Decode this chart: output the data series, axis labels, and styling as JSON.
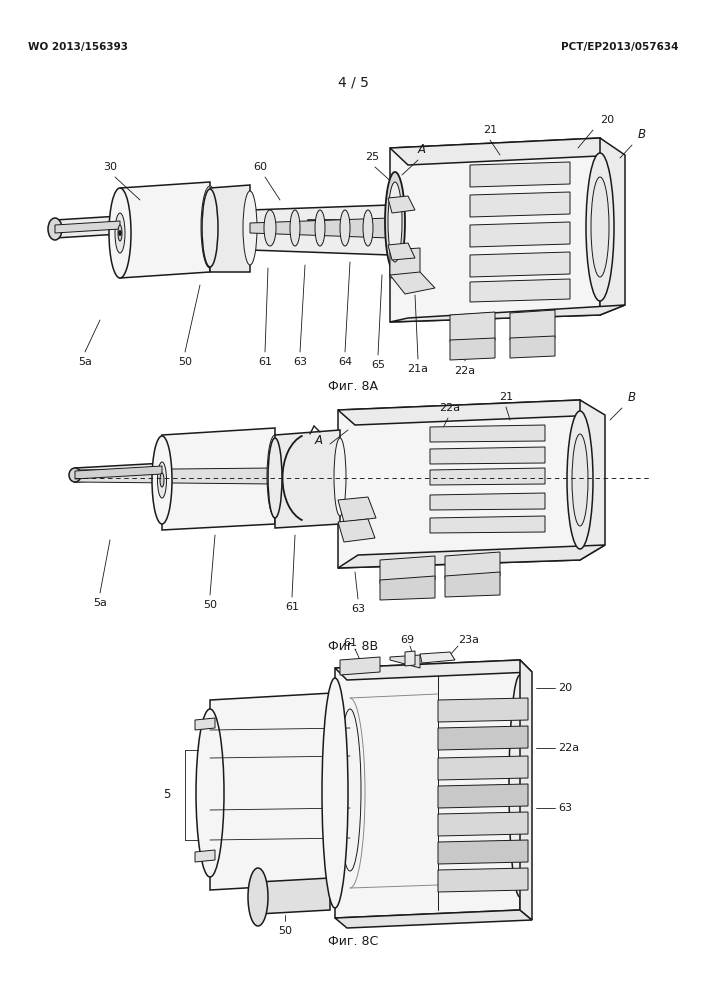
{
  "page_width": 7.07,
  "page_height": 10.0,
  "dpi": 100,
  "bg": "#ffffff",
  "header_left": "WO 2013/156393",
  "header_right": "PCT/EP2013/057634",
  "page_num": "4 / 5",
  "fig8A_caption": "Фиг. 8A",
  "fig8B_caption": "Фиг. 8B",
  "fig8C_caption": "Фиг. 8C",
  "lw_main": 1.1,
  "lw_thin": 0.7,
  "lw_label": 0.6,
  "fc_body": "#f5f5f5",
  "fc_dark": "#e0e0e0",
  "fc_mid": "#ebebeb",
  "text_color": "#1a1a1a"
}
